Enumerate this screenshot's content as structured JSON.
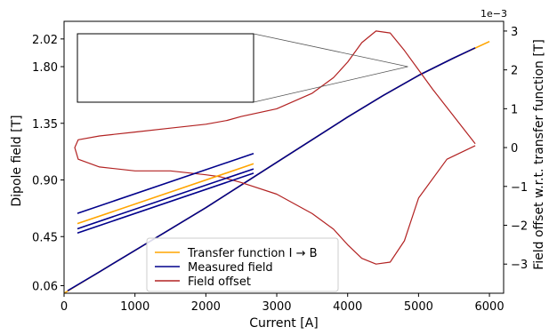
{
  "chart_data": {
    "type": "line",
    "title": "",
    "xlabel": "Current [A]",
    "ylabel_left": "Dipole field [T]",
    "ylabel_right": "Field offset w.r.t. transfer function [T]",
    "right_axis_multiplier": "1e−3",
    "xlim": [
      0,
      6200
    ],
    "ylim_left": [
      0.0,
      2.16
    ],
    "ylim_right": [
      -3.75,
      3.25
    ],
    "x_ticks": [
      0,
      1000,
      2000,
      3000,
      4000,
      5000,
      6000
    ],
    "x_tick_labels": [
      "0",
      "1000",
      "2000",
      "3000",
      "4000",
      "5000",
      "6000"
    ],
    "y_left_ticks": [
      0.06,
      0.45,
      0.9,
      1.35,
      1.8,
      2.02
    ],
    "y_left_tick_labels": [
      "0.06",
      "0.45",
      "0.90",
      "1.35",
      "1.80",
      "2.02"
    ],
    "y_right_ticks": [
      -3,
      -2,
      -1,
      0,
      1,
      2,
      3
    ],
    "y_right_tick_labels": [
      "−3",
      "−2",
      "−1",
      "0",
      "1",
      "2",
      "3"
    ],
    "grid": false,
    "legend_position": "lower-center",
    "inset": {
      "zoom_x": [
        4600,
        4850
      ],
      "zoom_y": [
        1.76,
        1.84
      ],
      "location": "upper-left"
    },
    "series": [
      {
        "name": "Transfer function I → B",
        "color": "#FFA500",
        "axis": "left",
        "x": [
          0,
          500,
          1000,
          1500,
          2000,
          2500,
          3000,
          3500,
          4000,
          4500,
          5000,
          5500,
          6000
        ],
        "y": [
          0.0,
          0.17,
          0.34,
          0.51,
          0.68,
          0.86,
          1.04,
          1.22,
          1.4,
          1.57,
          1.73,
          1.87,
          2.0
        ]
      },
      {
        "name": "Measured field",
        "color": "#00008B",
        "axis": "left",
        "x": [
          50,
          500,
          1000,
          1500,
          2000,
          2500,
          3000,
          3500,
          4000,
          4500,
          5000,
          5500,
          5800
        ],
        "y": [
          0.02,
          0.17,
          0.34,
          0.51,
          0.68,
          0.86,
          1.04,
          1.22,
          1.4,
          1.57,
          1.73,
          1.87,
          1.95
        ]
      },
      {
        "name": "Field offset",
        "color": "#B22222",
        "axis": "right",
        "x": [
          5800,
          5500,
          5200,
          5000,
          4800,
          4600,
          4400,
          4200,
          4000,
          3800,
          3500,
          3000,
          2500,
          2300,
          2000,
          1500,
          1000,
          500,
          200,
          150,
          200,
          500,
          1000,
          1500,
          2000,
          2200,
          2300,
          2500,
          3000,
          3500,
          3800,
          4000,
          4200,
          4400,
          4600,
          4800,
          5000,
          5400,
          5800
        ],
        "y": [
          0.1,
          0.8,
          1.5,
          2.0,
          2.5,
          2.95,
          3.0,
          2.7,
          2.2,
          1.8,
          1.4,
          1.0,
          0.8,
          0.7,
          0.6,
          0.5,
          0.4,
          0.3,
          0.2,
          0.0,
          -0.3,
          -0.5,
          -0.6,
          -0.6,
          -0.7,
          -0.75,
          -0.8,
          -0.9,
          -1.2,
          -1.7,
          -2.1,
          -2.5,
          -2.85,
          -3.0,
          -2.95,
          -2.4,
          -1.3,
          -0.3,
          0.05
        ]
      }
    ]
  }
}
